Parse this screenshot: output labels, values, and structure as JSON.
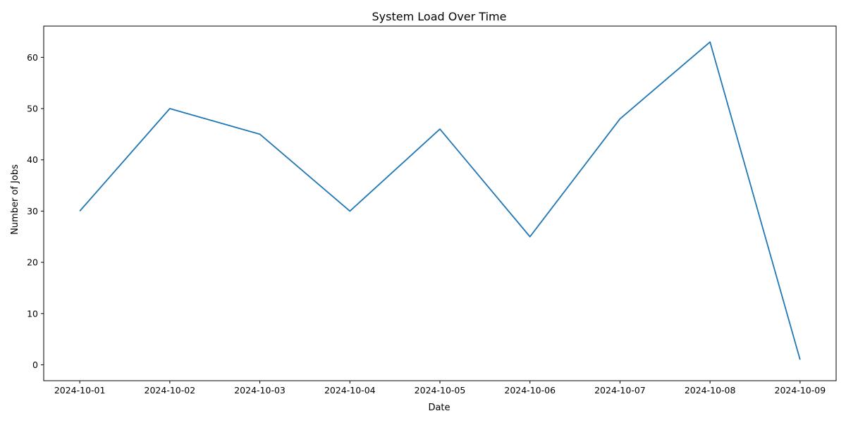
{
  "chart_data": {
    "type": "line",
    "title": "System Load Over Time",
    "xlabel": "Date",
    "ylabel": "Number of Jobs",
    "x": [
      "2024-10-01",
      "2024-10-02",
      "2024-10-03",
      "2024-10-04",
      "2024-10-05",
      "2024-10-06",
      "2024-10-07",
      "2024-10-08",
      "2024-10-09"
    ],
    "series": [
      {
        "values": [
          30,
          50,
          45,
          30,
          46,
          25,
          48,
          63,
          1
        ],
        "color": "#1f77b4"
      }
    ],
    "yticks": [
      0,
      10,
      20,
      30,
      40,
      50,
      60
    ],
    "ylim": [
      -3.1,
      66.1
    ],
    "grid": false,
    "legend": "none"
  }
}
